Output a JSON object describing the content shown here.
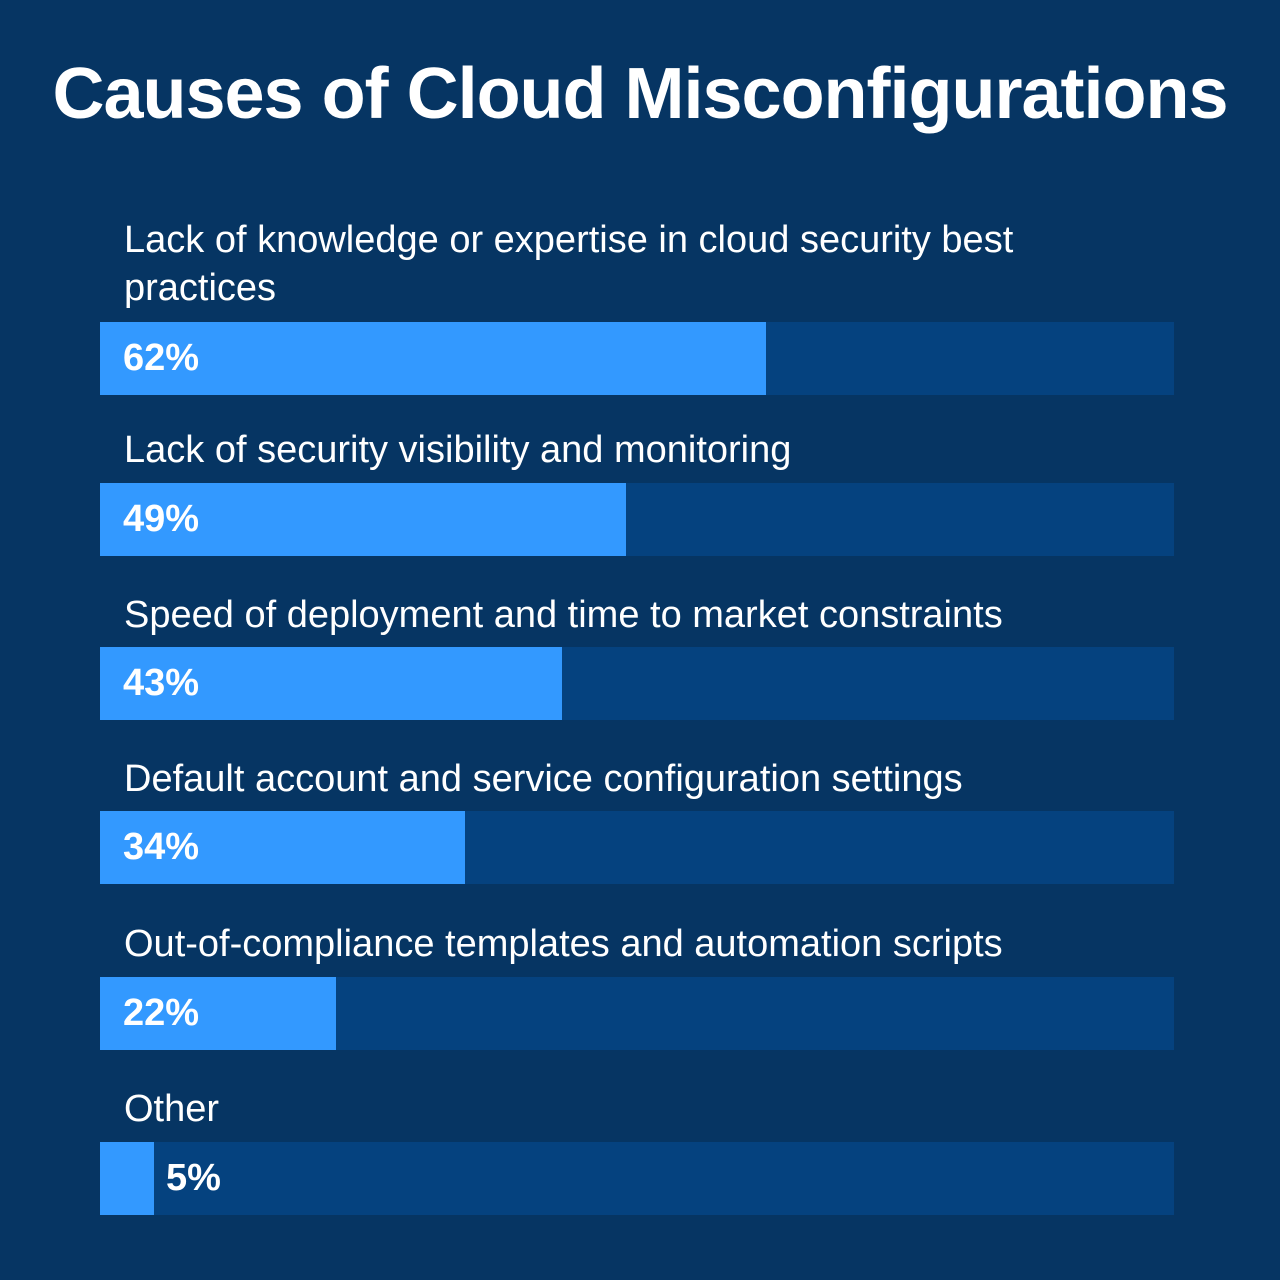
{
  "title": "Causes of Cloud Misconfigurations",
  "colors": {
    "background": "#063563",
    "track": "#05427f",
    "fill": "#3399ff",
    "text": "#ffffff"
  },
  "chart_data": {
    "type": "bar",
    "orientation": "horizontal",
    "title": "Causes of Cloud Misconfigurations",
    "xlim": [
      0,
      100
    ],
    "unit": "%",
    "grid": false,
    "legend": "none",
    "categories": [
      "Lack of knowledge or expertise in cloud security best practices",
      "Lack of security visibility and monitoring",
      "Speed of deployment and time to market constraints",
      "Default account and service configuration settings",
      "Out-of-compliance templates and automation scripts",
      "Other"
    ],
    "values": [
      62,
      49,
      43,
      34,
      22,
      5
    ],
    "value_labels": [
      "62%",
      "49%",
      "43%",
      "34%",
      "22%",
      "5%"
    ]
  }
}
